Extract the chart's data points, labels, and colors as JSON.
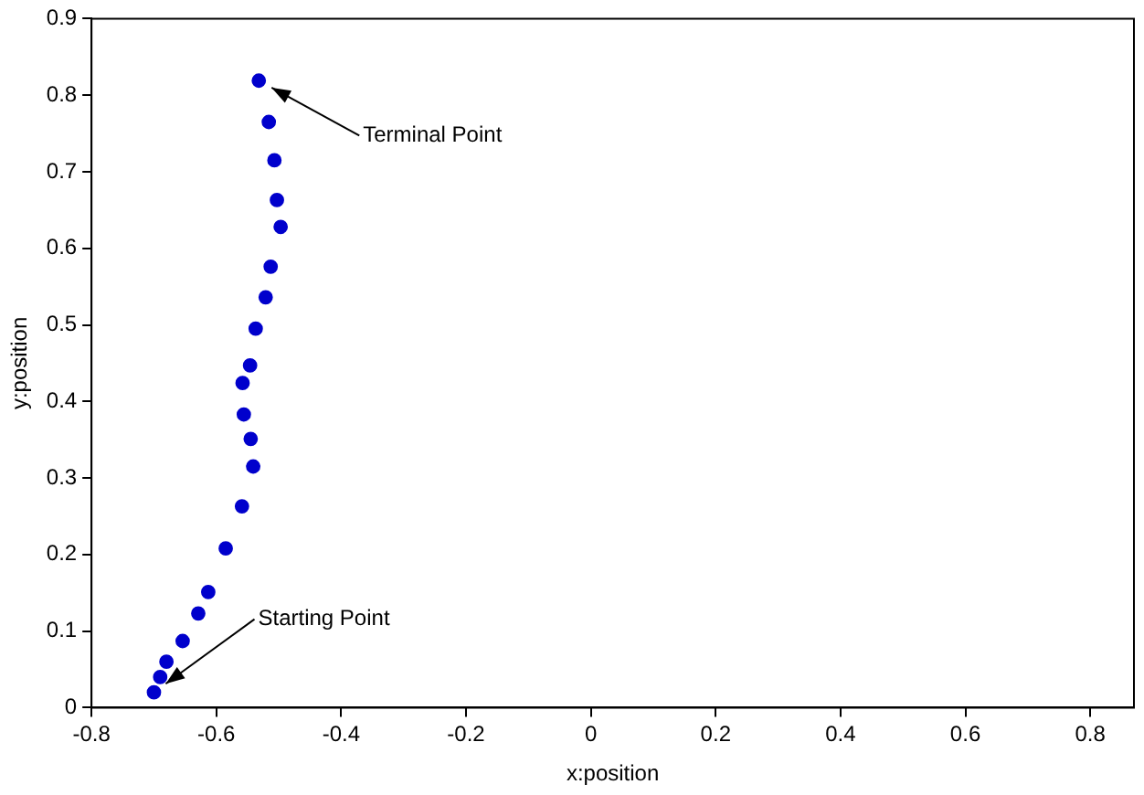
{
  "chart_data": {
    "type": "scatter",
    "xlabel": "x:position",
    "ylabel": "y:position",
    "x": [
      -0.532,
      -0.516,
      -0.507,
      -0.503,
      -0.497,
      -0.513,
      -0.521,
      -0.537,
      -0.546,
      -0.558,
      -0.556,
      -0.545,
      -0.541,
      -0.559,
      -0.585,
      -0.613,
      -0.629,
      -0.654,
      -0.68,
      -0.69,
      -0.7
    ],
    "series": [
      {
        "color": "#0000cc",
        "values": [
          0.819,
          0.765,
          0.715,
          0.663,
          0.628,
          0.576,
          0.536,
          0.495,
          0.447,
          0.424,
          0.383,
          0.351,
          0.315,
          0.263,
          0.208,
          0.151,
          0.123,
          0.087,
          0.06,
          0.04,
          0.02
        ]
      }
    ],
    "xlim": [
      -0.8,
      0.87
    ],
    "xticks": [
      -0.8,
      -0.6,
      -0.4,
      -0.2,
      0,
      0.2,
      0.4,
      0.6,
      0.8
    ],
    "ylim": [
      0,
      0.9
    ],
    "yticks": [
      0,
      0.1,
      0.2,
      0.3,
      0.4,
      0.5,
      0.6,
      0.7,
      0.8,
      0.9
    ],
    "grid": false,
    "legend": false,
    "marker": "circle",
    "annotations": [
      {
        "text": "Terminal Point",
        "x": -0.532,
        "y": 0.819
      },
      {
        "text": "Starting Point",
        "x": -0.7,
        "y": 0.02
      }
    ]
  }
}
